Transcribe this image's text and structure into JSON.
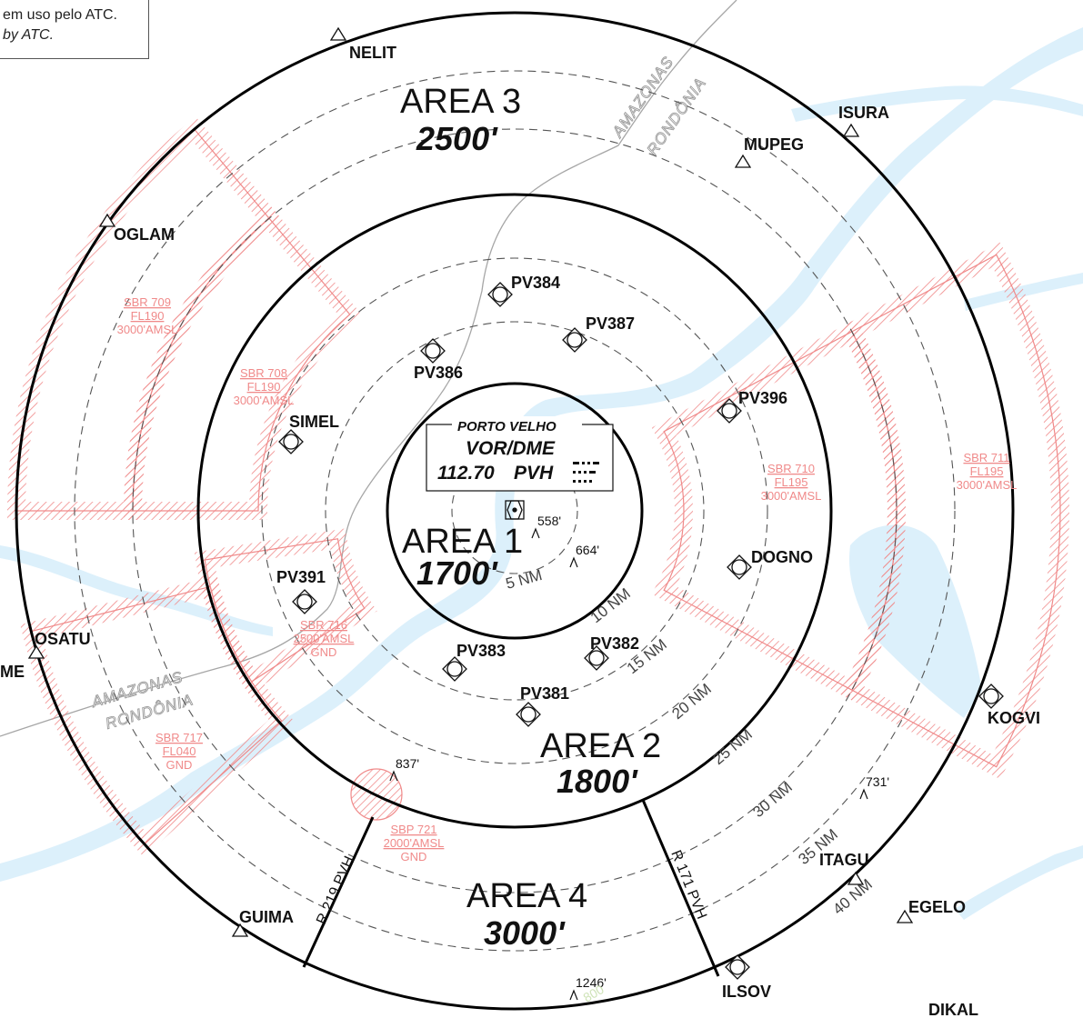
{
  "note": {
    "pt": "em uso pelo ATC.",
    "en": "by ATC."
  },
  "areas": [
    {
      "name": "AREA 1",
      "altitude": "1700'"
    },
    {
      "name": "AREA 2",
      "altitude": "1800'"
    },
    {
      "name": "AREA 3",
      "altitude": "2500'"
    },
    {
      "name": "AREA 4",
      "altitude": "3000'"
    }
  ],
  "vor": {
    "name": "PORTO VELHO",
    "type": "VOR/DME",
    "freq": "112.70",
    "ident": "PVH"
  },
  "range_rings": [
    "5 NM",
    "10 NM",
    "15 NM",
    "20 NM",
    "25 NM",
    "30 NM",
    "35 NM",
    "40 NM"
  ],
  "waypoints": {
    "nelit": "NELIT",
    "isura": "ISURA",
    "mupeg": "MUPEG",
    "oglam": "OGLAM",
    "pv384": "PV384",
    "pv387": "PV387",
    "pv386": "PV386",
    "pv396": "PV396",
    "simel": "SIMEL",
    "dogno": "DOGNO",
    "pv391": "PV391",
    "osatu": "OSATU",
    "me": "ME",
    "pv383": "PV383",
    "pv382": "PV382",
    "pv381": "PV381",
    "kogvi": "KOGVI",
    "itagu": "ITAGU",
    "egelo": "EGELO",
    "guima": "GUIMA",
    "ilsov": "ILSOV",
    "dikal": "DIKAL"
  },
  "restricted_areas": {
    "sbr709": [
      "SBR 709",
      "FL190",
      "3000'AMSL"
    ],
    "sbr708": [
      "SBR 708",
      "FL190",
      "3000'AMSL"
    ],
    "sbr710": [
      "SBR 710",
      "FL195",
      "3000'AMSL"
    ],
    "sbr711": [
      "SBR 711",
      "FL195",
      "3000'AMSL"
    ],
    "sbr716": [
      "SBR 716",
      "2500'AMSL",
      "GND"
    ],
    "sbr717": [
      "SBR 717",
      "FL040",
      "GND"
    ],
    "sbp721": [
      "SBP 721",
      "2000'AMSL",
      "GND"
    ]
  },
  "obstacles": [
    "558'",
    "664'",
    "837'",
    "731'",
    "1246'"
  ],
  "radials": {
    "r219": "R 219 PVH",
    "r171": "R 171 PVH"
  },
  "borders": {
    "amazonas": "AMAZONAS",
    "rondonia": "RONDÔNIA",
    "faded_800": "800"
  },
  "colors": {
    "restricted": "#f08a8a",
    "water": "#dcf0fb",
    "ring": "#000000",
    "dashed": "#555555"
  }
}
